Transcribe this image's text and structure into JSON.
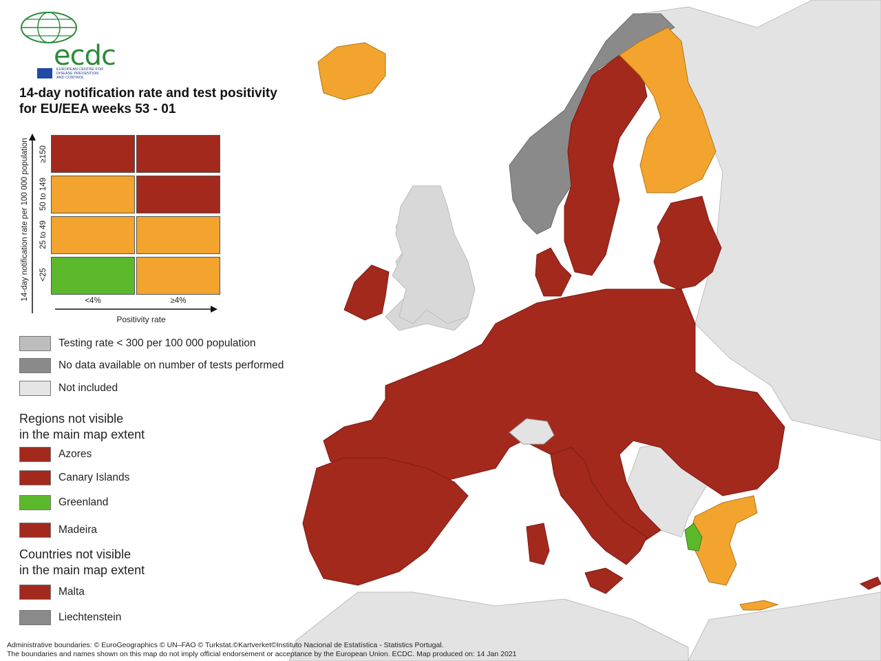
{
  "title": [
    "14-day notification rate and test positivity",
    "for EU/EEA weeks 53 - 01"
  ],
  "logo": {
    "text": "ecdc",
    "subtitle": [
      "EUROPEAN CENTRE FOR",
      "DISEASE PREVENTION",
      "AND CONTROL"
    ]
  },
  "colors": {
    "dark_red": "#a3291d",
    "orange": "#f2a42e",
    "green": "#5cb82b",
    "grey_light": "#bdbdbd",
    "grey_dark": "#8a8a8a",
    "not_included": "#e5e5e5",
    "sea": "#ffffff"
  },
  "matrix": {
    "ylabel": "14-day notification rate per 100 000 population",
    "xlabel": "Positivity rate",
    "rows": [
      "≥150",
      "50 to 149",
      "25 to 49",
      "<25"
    ],
    "cols": [
      "<4%",
      "≥4%"
    ],
    "cells": [
      [
        "dark_red",
        "dark_red"
      ],
      [
        "orange",
        "dark_red"
      ],
      [
        "orange",
        "orange"
      ],
      [
        "green",
        "orange"
      ]
    ]
  },
  "legend": [
    {
      "label": "Testing rate < 300 per 100 000 population",
      "color": "grey_light"
    },
    {
      "label": "No data available on number of tests performed",
      "color": "grey_dark"
    },
    {
      "label": "Not included",
      "color": "not_included"
    }
  ],
  "regions_heading": [
    "Regions not visible",
    "in the main map extent"
  ],
  "regions": [
    {
      "label": "Azores",
      "color": "dark_red"
    },
    {
      "label": "Canary Islands",
      "color": "dark_red"
    },
    {
      "label": "Greenland",
      "color": "green"
    },
    {
      "label": "Madeira",
      "color": "dark_red"
    }
  ],
  "countries_heading": [
    "Countries not visible",
    "in the main map extent"
  ],
  "countries": [
    {
      "label": "Malta",
      "color": "dark_red"
    },
    {
      "label": "Liechtenstein",
      "color": "grey_dark"
    }
  ],
  "footer": [
    "Administrative boundaries: © EuroGeographics © UN–FAO © Turkstat.©Kartverket©Instituto Nacional de Estatística - Statistics Portugal.",
    "The boundaries and names shown on this map do not imply official endorsement or acceptance by the European Union. ECDC. Map produced on: 14 Jan 2021"
  ],
  "map_regions": [
    {
      "name": "iceland",
      "color": "orange"
    },
    {
      "name": "norway",
      "color": "grey_dark"
    },
    {
      "name": "sweden",
      "color": "dark_red"
    },
    {
      "name": "finland",
      "color": "orange"
    },
    {
      "name": "estonia",
      "color": "dark_red"
    },
    {
      "name": "latvia",
      "color": "dark_red"
    },
    {
      "name": "lithuania",
      "color": "dark_red"
    },
    {
      "name": "ireland",
      "color": "dark_red"
    },
    {
      "name": "denmark",
      "color": "dark_red"
    },
    {
      "name": "mainland-europe",
      "color": "dark_red"
    },
    {
      "name": "switzerland",
      "color": "not_included"
    },
    {
      "name": "balkans",
      "color": "not_included"
    },
    {
      "name": "greece",
      "color": "orange"
    },
    {
      "name": "albania",
      "color": "green"
    },
    {
      "name": "iberia",
      "color": "dark_red"
    },
    {
      "name": "italy",
      "color": "dark_red"
    },
    {
      "name": "united-kingdom",
      "color": "not_included"
    }
  ]
}
